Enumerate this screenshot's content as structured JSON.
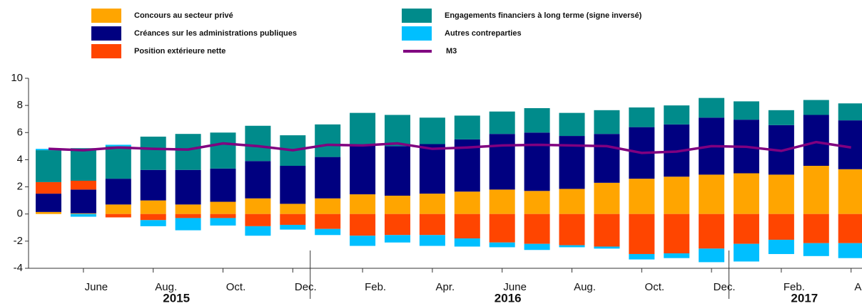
{
  "chart_data": {
    "type": "bar",
    "categories": [
      null,
      "June",
      null,
      "Aug.",
      null,
      "Oct.",
      null,
      "Dec.",
      null,
      "Feb.",
      null,
      "Apr.",
      null,
      "June",
      null,
      "Aug.",
      null,
      "Oct.",
      null,
      "Dec.",
      null,
      "Feb.",
      null,
      "Apr."
    ],
    "years": [
      "2015",
      "2016",
      "2017"
    ],
    "series": [
      {
        "name": "Concours au secteur privé",
        "color": "#ffa500",
        "values": [
          0.15,
          0.05,
          0.7,
          1.0,
          0.7,
          0.9,
          1.15,
          0.75,
          1.15,
          1.45,
          1.35,
          1.5,
          1.65,
          1.8,
          1.7,
          1.85,
          2.3,
          2.6,
          2.75,
          2.9,
          3.0,
          2.9,
          3.55,
          3.3
        ]
      },
      {
        "name": "Créances sur les administrations publiques",
        "color": "#000080",
        "values": [
          1.35,
          1.75,
          1.9,
          2.25,
          2.55,
          2.45,
          2.75,
          2.8,
          3.05,
          3.6,
          3.65,
          3.65,
          3.85,
          4.1,
          4.3,
          3.9,
          3.6,
          3.8,
          3.85,
          4.2,
          3.95,
          3.65,
          3.75,
          3.6
        ]
      },
      {
        "name": "Position extérieure nette",
        "color": "#ff4500",
        "values": [
          0.85,
          0.65,
          -0.25,
          -0.45,
          -0.3,
          -0.3,
          -0.9,
          -0.8,
          -1.1,
          -1.6,
          -1.55,
          -1.55,
          -1.8,
          -2.1,
          -2.2,
          -2.3,
          -2.4,
          -2.95,
          -2.9,
          -2.55,
          -2.2,
          -1.9,
          -2.15,
          -2.15
        ]
      },
      {
        "name": "Engagements financiers à long terme (signe inversé)",
        "color": "#008b8b",
        "values": [
          2.35,
          2.4,
          2.4,
          2.45,
          2.65,
          2.65,
          2.6,
          2.25,
          2.4,
          2.4,
          2.3,
          1.95,
          1.75,
          1.65,
          1.8,
          1.7,
          1.75,
          1.45,
          1.4,
          1.45,
          1.35,
          1.1,
          1.1,
          1.25
        ]
      },
      {
        "name": "Autres contreparties",
        "color": "#00bfff",
        "values": [
          0.1,
          -0.2,
          0.1,
          -0.45,
          -0.9,
          -0.55,
          -0.7,
          -0.35,
          -0.45,
          -0.75,
          -0.55,
          -0.8,
          -0.6,
          -0.35,
          -0.45,
          -0.15,
          -0.15,
          -0.4,
          -0.35,
          -1.0,
          -1.3,
          -1.05,
          -0.95,
          -1.1
        ]
      },
      {
        "name": "M3",
        "color": "#800080",
        "type": "line",
        "values": [
          4.8,
          4.7,
          4.9,
          4.8,
          4.75,
          5.2,
          5.0,
          4.7,
          5.1,
          5.05,
          5.2,
          4.8,
          4.9,
          5.05,
          5.1,
          5.05,
          5.0,
          4.5,
          4.6,
          5.0,
          4.95,
          4.65,
          5.3,
          4.9
        ]
      }
    ],
    "ylim": [
      -4,
      10
    ],
    "yticks": [
      -4,
      -2,
      0,
      2,
      4,
      6,
      8,
      10
    ]
  }
}
